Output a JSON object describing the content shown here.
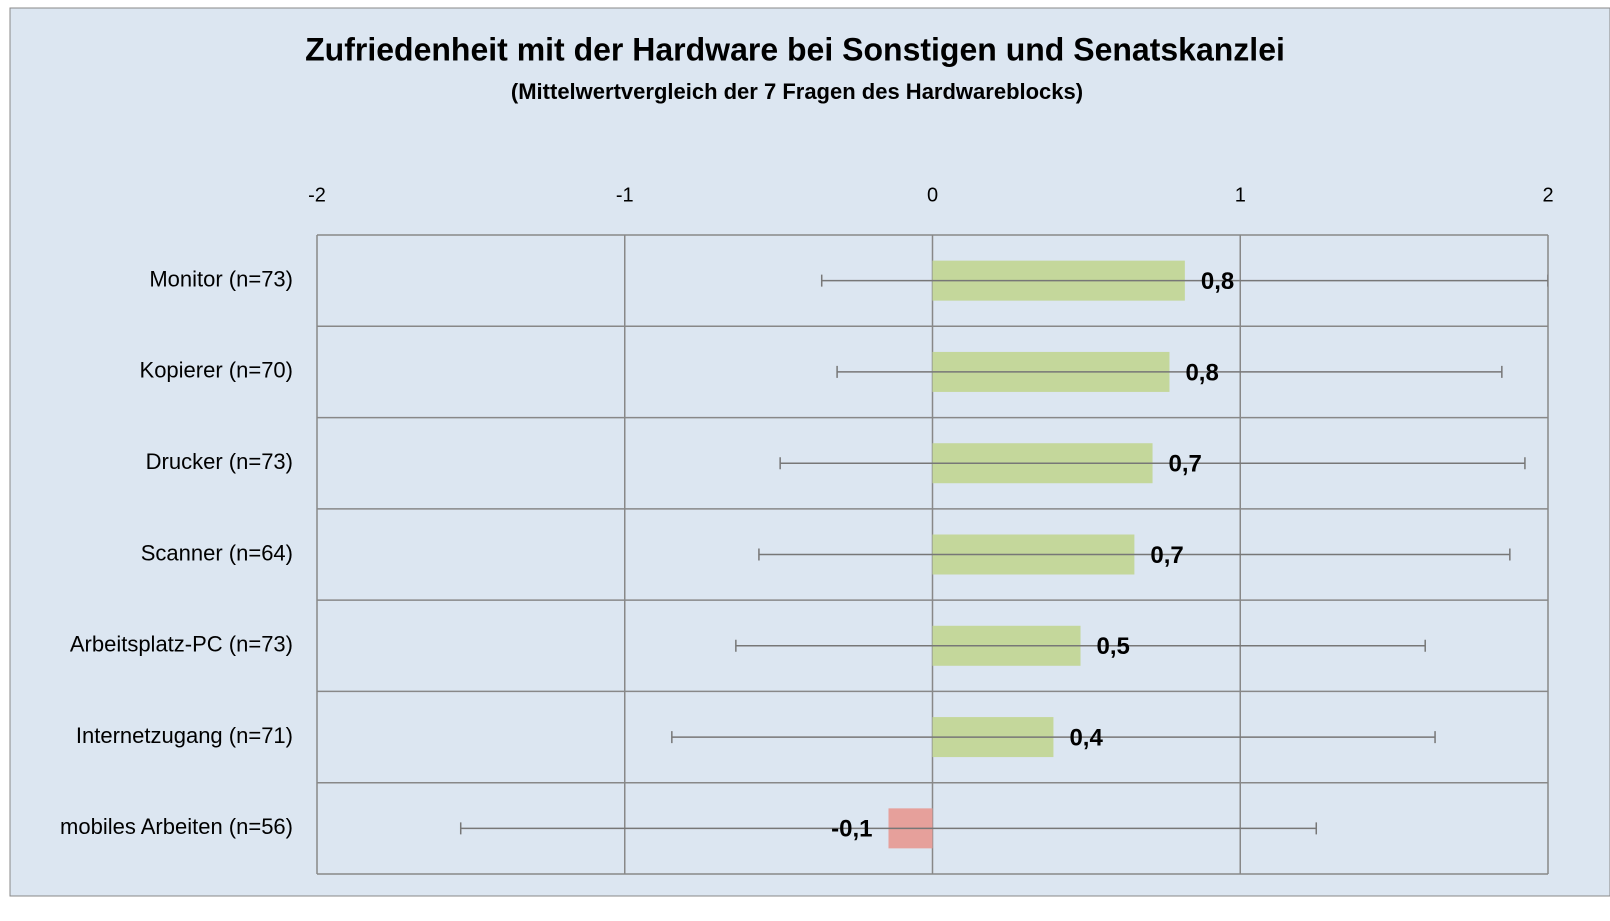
{
  "chart_data": {
    "type": "bar",
    "orientation": "horizontal",
    "title": "Zufriedenheit mit der Hardware bei Sonstigen und Senatskanzlei",
    "subtitle": "(Mittelwertvergleich der 7 Fragen des Hardwareblocks)",
    "categories": [
      "Monitor (n=73)",
      "Kopierer (n=70)",
      "Drucker (n=73)",
      "Scanner (n=64)",
      "Arbeitsplatz-PC (n=73)",
      "Internetzugang (n=71)",
      "mobiles Arbeiten (n=56)"
    ],
    "values": [
      0.82,
      0.77,
      0.715,
      0.656,
      0.481,
      0.393,
      -0.143
    ],
    "value_labels": [
      "0,8",
      "0,8",
      "0,7",
      "0,7",
      "0,5",
      "0,4",
      "-0,1"
    ],
    "errors": [
      1.18,
      1.08,
      1.21,
      1.22,
      1.12,
      1.24,
      1.39
    ],
    "colors": [
      "#c4d79b",
      "#c4d79b",
      "#c4d79b",
      "#c4d79b",
      "#c4d79b",
      "#c4d79b",
      "#e6a09b"
    ],
    "xlim": [
      -2,
      2
    ],
    "xticks": [
      -2,
      -1,
      0,
      1,
      2
    ],
    "grid": true
  }
}
